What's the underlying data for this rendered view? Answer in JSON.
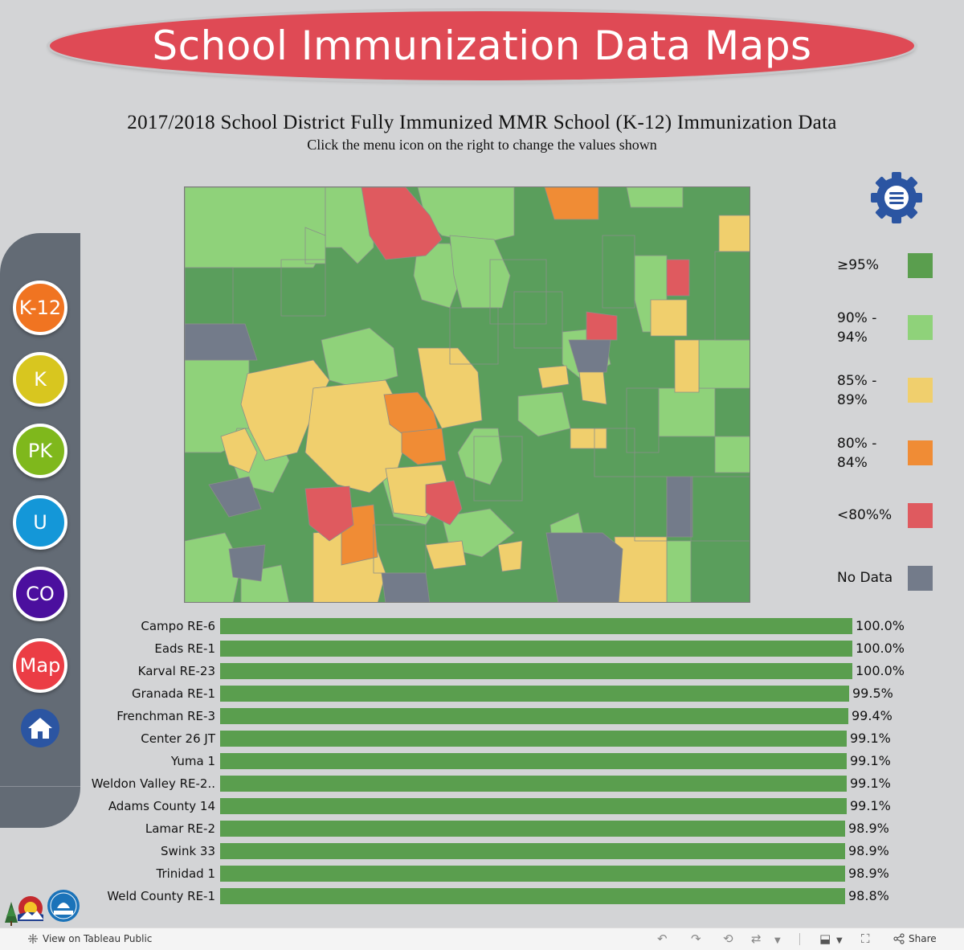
{
  "banner": {
    "title": "School Immunization Data Maps"
  },
  "heading": {
    "title": "2017/2018 School District Fully Immunized MMR School (K-12) Immunization Data",
    "subtitle": "Click the menu icon on the right to change the values shown"
  },
  "menu": {
    "icon": "gear-menu-icon"
  },
  "legend": [
    {
      "label": "≥95%",
      "color": "#5a9e4e"
    },
    {
      "label": "90% - 94%",
      "color": "#8fd27a"
    },
    {
      "label": "85% - 89%",
      "color": "#f0cf6d"
    },
    {
      "label": "80% - 84%",
      "color": "#f08c35"
    },
    {
      "label": "<80%%",
      "color": "#df5a5f"
    },
    {
      "label": "No Data",
      "color": "#737b8a"
    }
  ],
  "nav": {
    "buttons": [
      {
        "label": "K-12",
        "color": "#f07421"
      },
      {
        "label": "K",
        "color": "#d8c61f"
      },
      {
        "label": "PK",
        "color": "#7fb81c"
      },
      {
        "label": "U",
        "color": "#1497d8"
      },
      {
        "label": "CO",
        "color": "#4b0f9e"
      },
      {
        "label": "Map",
        "color": "#eb3d45"
      }
    ],
    "home_icon": "home-icon"
  },
  "chart_data": {
    "type": "bar",
    "orientation": "horizontal",
    "categories": [
      "Campo RE-6",
      "Eads RE-1",
      "Karval RE-23",
      "Granada RE-1",
      "Frenchman RE-3",
      "Center 26 JT",
      "Yuma 1",
      "Weldon Valley RE-2..",
      "Adams County 14",
      "Lamar RE-2",
      "Swink 33",
      "Trinidad 1",
      "Weld County RE-1"
    ],
    "values": [
      100.0,
      100.0,
      100.0,
      99.5,
      99.4,
      99.1,
      99.1,
      99.1,
      99.1,
      98.9,
      98.9,
      98.9,
      98.8
    ],
    "value_labels": [
      "100.0%",
      "100.0%",
      "100.0%",
      "99.5%",
      "99.4%",
      "99.1%",
      "99.1%",
      "99.1%",
      "99.1%",
      "98.9%",
      "98.9%",
      "98.9%",
      "98.8%"
    ],
    "color": "#5a9e4e",
    "xlim": [
      0,
      100
    ]
  },
  "footer": {
    "view_label": "View on Tableau Public",
    "share_label": "Share"
  }
}
